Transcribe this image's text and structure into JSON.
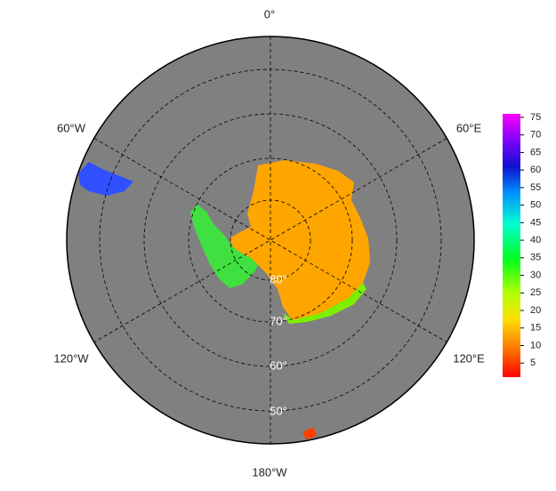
{
  "map": {
    "longitude_labels": [
      "0°",
      "60°E",
      "120°E",
      "180°W",
      "120°W",
      "60°W"
    ],
    "latitude_labels": [
      "80°",
      "70°",
      "60°",
      "50°"
    ],
    "colorbar": {
      "lim": [
        1,
        76
      ],
      "ticks": [
        5,
        10,
        15,
        20,
        25,
        30,
        35,
        40,
        45,
        50,
        55,
        60,
        65,
        70,
        75
      ]
    }
  }
}
